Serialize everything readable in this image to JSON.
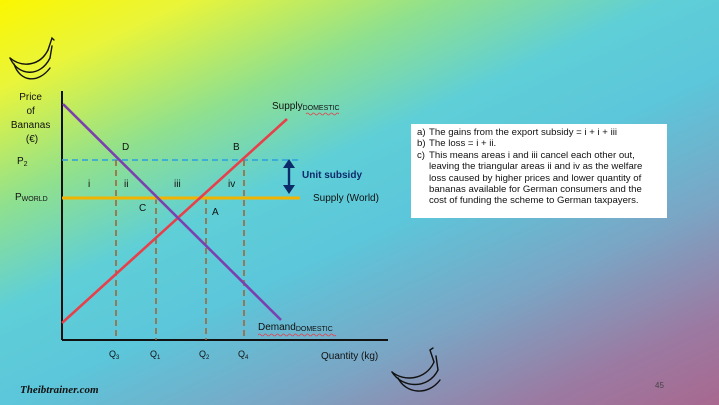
{
  "diagram": {
    "y_axis_label": [
      "Price",
      "of",
      "Bananas",
      "(€)"
    ],
    "x_axis_label": "Quantity (kg)",
    "supply_domestic_label": "Supply",
    "supply_domestic_subscript": "DOMESTIC",
    "demand_label": "Demand",
    "demand_subscript": "DOMESTIC",
    "supply_world_label": "Supply (World)",
    "unit_subsidy_label": "Unit subsidy",
    "p2_label": "P",
    "p2_subscript": "2",
    "pworld_label": "P",
    "pworld_subscript": "WORLD",
    "points": {
      "D": "D",
      "B": "B",
      "C": "C",
      "A": "A"
    },
    "areas": {
      "i": "i",
      "ii": "ii",
      "iii": "iii",
      "iv": "iv"
    },
    "q_labels": [
      {
        "main": "Q",
        "sub": "3"
      },
      {
        "main": "Q",
        "sub": "1"
      },
      {
        "main": "Q",
        "sub": "2"
      },
      {
        "main": "Q",
        "sub": "4"
      }
    ],
    "colors": {
      "supply_domestic": "#e8404a",
      "demand": "#7b3fb0",
      "supply_world": "#f0b400",
      "p2_dash": "#2a9fe0",
      "q_dash": "#a0663a",
      "arrow": "#0d2a6b",
      "axes": "#111111"
    }
  },
  "notes": [
    {
      "label": "a)",
      "text": "The gains from the export subsidy = i + i + iii"
    },
    {
      "label": "b)",
      "text": "The loss = i + ii."
    },
    {
      "label": "c)",
      "text": "This means areas i and iii cancel each other out, leaving the triangular areas ii and iv as the welfare loss caused by higher prices and lower quantity of bananas available for German consumers and the cost of funding the scheme to German taxpayers."
    }
  ],
  "footer": {
    "logo_text": "Theibtrainer.com",
    "page_number": "45"
  },
  "icons": [
    "banana-icon-top-left",
    "banana-icon-bottom-right"
  ]
}
